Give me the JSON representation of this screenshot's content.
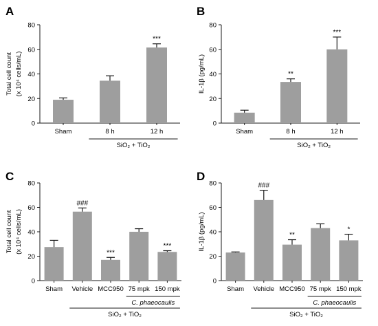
{
  "chart_data": [
    {
      "panel": "A",
      "type": "bar",
      "ylabel_line1": "Total cell count",
      "ylabel_line2": "(x 10⁴ cells/mL)",
      "ylim": [
        0,
        80
      ],
      "yticks": [
        "0",
        "20",
        "40",
        "60",
        "80"
      ],
      "categories": [
        "Sham",
        "8 h",
        "12 h"
      ],
      "values": [
        19,
        34.5,
        61.5
      ],
      "errors": [
        1.5,
        4,
        3
      ],
      "significance": [
        "",
        "",
        "***"
      ],
      "groups": [
        {
          "label": "SiO₂ + TiO₂",
          "from": 1,
          "to": 2
        }
      ],
      "bar_color": "#9e9e9e"
    },
    {
      "panel": "B",
      "type": "bar",
      "ylabel_line1": "IL-1β (pg/mL)",
      "ylabel_line2": "",
      "ylim": [
        0,
        80
      ],
      "yticks": [
        "0",
        "20",
        "40",
        "60",
        "80"
      ],
      "categories": [
        "Sham",
        "8 h",
        "12 h"
      ],
      "values": [
        8.5,
        33.5,
        60
      ],
      "errors": [
        2,
        2.5,
        10
      ],
      "significance": [
        "",
        "**",
        "***"
      ],
      "groups": [
        {
          "label": "SiO₂ + TiO₂",
          "from": 1,
          "to": 2
        }
      ],
      "bar_color": "#9e9e9e"
    },
    {
      "panel": "C",
      "type": "bar",
      "ylabel_line1": "Total cell count",
      "ylabel_line2": "(x 10⁴ cells/mL)",
      "ylim": [
        0,
        80
      ],
      "yticks": [
        "0",
        "20",
        "40",
        "60",
        "80"
      ],
      "categories": [
        "Sham",
        "Vehicle",
        "MCC950",
        "75 mpk",
        "150 mpk"
      ],
      "values": [
        27.5,
        56.5,
        17,
        40,
        23.5
      ],
      "errors": [
        5.5,
        3,
        2,
        2.5,
        1
      ],
      "significance": [
        "",
        "###",
        "***",
        "",
        "***"
      ],
      "groups": [
        {
          "label": "C. phaeocaulis",
          "from": 3,
          "to": 4,
          "italic": true
        },
        {
          "label": "SiO₂ + TiO₂",
          "from": 1,
          "to": 4
        }
      ],
      "bar_color": "#9e9e9e"
    },
    {
      "panel": "D",
      "type": "bar",
      "ylabel_line1": "IL-1β (pg/mL)",
      "ylabel_line2": "",
      "ylim": [
        0,
        80
      ],
      "yticks": [
        "0",
        "20",
        "40",
        "60",
        "80"
      ],
      "categories": [
        "Sham",
        "Vehicle",
        "MCC950",
        "75 mpk",
        "150 mpk"
      ],
      "values": [
        23,
        66,
        29.5,
        43,
        33
      ],
      "errors": [
        0.5,
        8,
        4,
        3.5,
        5
      ],
      "significance": [
        "",
        "###",
        "**",
        "",
        "*"
      ],
      "groups": [
        {
          "label": "C. phaeocaulis",
          "from": 3,
          "to": 4,
          "italic": true
        },
        {
          "label": "SiO₂ + TiO₂",
          "from": 1,
          "to": 4
        }
      ],
      "bar_color": "#9e9e9e"
    }
  ]
}
